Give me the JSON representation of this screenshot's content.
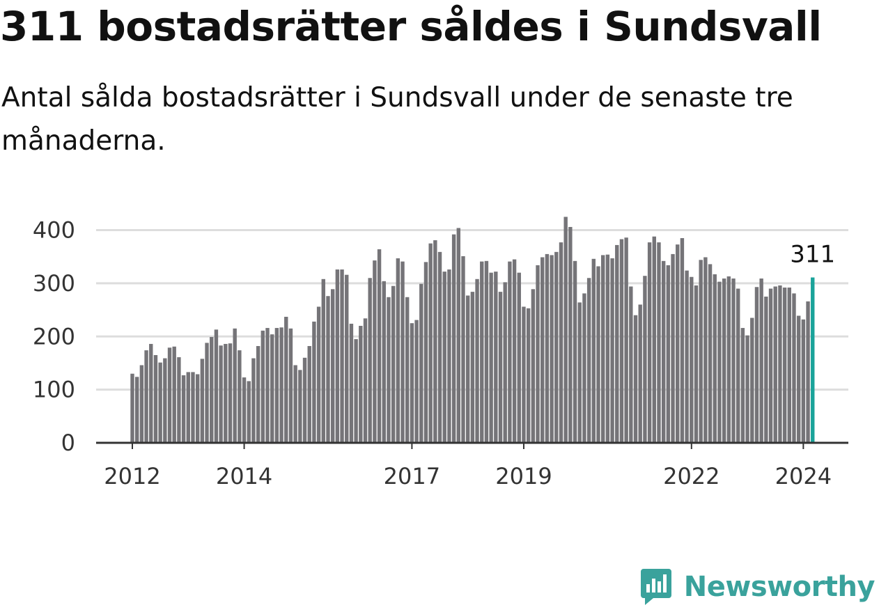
{
  "header": {
    "title": "311 bostadsrätter såldes i Sundsvall",
    "subtitle": "Antal sålda bostadsrätter i Sundsvall under de senaste tre månaderna."
  },
  "brand": {
    "name": "Newsworthy",
    "icon": "newsworthy-logo-icon",
    "color": "#3aa29c"
  },
  "chart_data": {
    "type": "bar",
    "x_ticks": [
      "2012",
      "2014",
      "2017",
      "2019",
      "2022",
      "2024"
    ],
    "y_ticks": [
      "0",
      "100",
      "200",
      "300",
      "400"
    ],
    "ylim": [
      0,
      440
    ],
    "grid": true,
    "bar_color": "#757478",
    "highlight_color": "#1aa39a",
    "highlight_label": "311",
    "values": [
      130,
      124,
      146,
      174,
      186,
      165,
      151,
      159,
      179,
      181,
      161,
      127,
      133,
      133,
      129,
      158,
      188,
      199,
      213,
      183,
      186,
      187,
      215,
      174,
      123,
      116,
      159,
      182,
      211,
      216,
      204,
      216,
      217,
      237,
      215,
      146,
      137,
      160,
      182,
      228,
      256,
      308,
      276,
      289,
      326,
      326,
      316,
      224,
      195,
      220,
      234,
      310,
      343,
      364,
      304,
      274,
      295,
      347,
      341,
      274,
      225,
      231,
      299,
      340,
      375,
      381,
      359,
      322,
      326,
      392,
      404,
      351,
      277,
      284,
      308,
      341,
      342,
      320,
      322,
      284,
      302,
      341,
      345,
      320,
      256,
      253,
      289,
      334,
      349,
      355,
      353,
      359,
      377,
      425,
      406,
      342,
      264,
      281,
      310,
      346,
      332,
      353,
      354,
      347,
      372,
      383,
      386,
      294,
      240,
      260,
      314,
      377,
      388,
      377,
      342,
      334,
      355,
      373,
      385,
      324,
      312,
      296,
      344,
      349,
      336,
      317,
      303,
      309,
      313,
      309,
      290,
      216,
      202,
      235,
      293,
      309,
      275,
      290,
      294,
      296,
      292,
      292,
      281,
      239,
      232,
      266,
      311
    ],
    "highlight_index": 146
  }
}
